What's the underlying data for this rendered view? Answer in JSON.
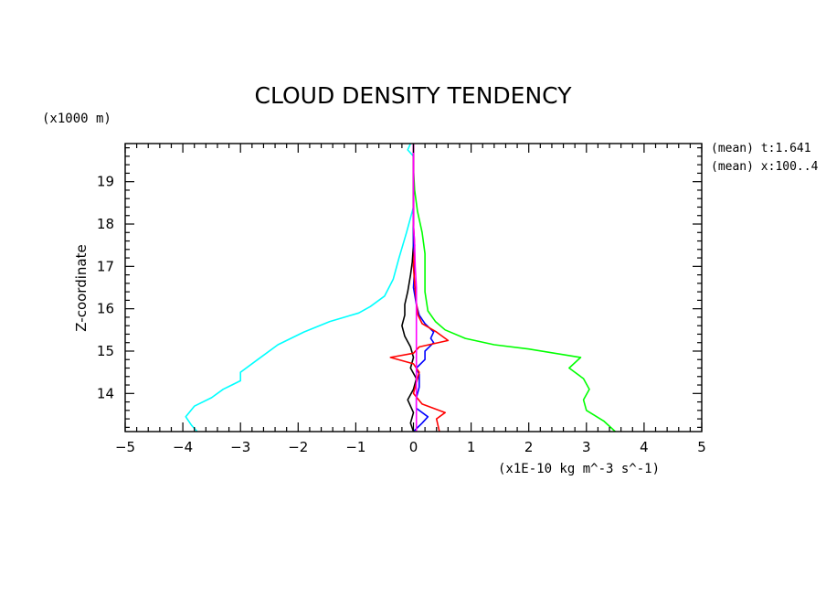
{
  "chart_data": {
    "type": "line",
    "title": "CLOUD DENSITY TENDENCY",
    "xlabel": "(x1E-10 kg m^-3 s^-1)",
    "ylabel": "Z-coordinate",
    "y_unit_label": "(x1000 m)",
    "annotations": [
      "(mean) t:1.641",
      "(mean) x:100..4"
    ],
    "xlim": [
      -5,
      5
    ],
    "ylim": [
      13.1,
      19.9
    ],
    "x_ticks": [
      -5,
      -4,
      -3,
      -2,
      -1,
      0,
      1,
      2,
      3,
      4,
      5
    ],
    "x_tick_labels": [
      "−5",
      "−4",
      "−3",
      "−2",
      "−1",
      "0",
      "1",
      "2",
      "3",
      "4",
      "5"
    ],
    "y_ticks": [
      14,
      15,
      16,
      17,
      18,
      19
    ],
    "y_tick_labels": [
      "14",
      "15",
      "16",
      "17",
      "18",
      "19"
    ],
    "grid": false,
    "legend": "none",
    "series": [
      {
        "color": "#00ffff",
        "points": [
          [
            -3.75,
            13.1
          ],
          [
            -3.85,
            13.25
          ],
          [
            -3.95,
            13.45
          ],
          [
            -3.8,
            13.7
          ],
          [
            -3.5,
            13.9
          ],
          [
            -3.3,
            14.1
          ],
          [
            -3.0,
            14.3
          ],
          [
            -3.0,
            14.5
          ],
          [
            -2.7,
            14.8
          ],
          [
            -2.35,
            15.15
          ],
          [
            -1.9,
            15.45
          ],
          [
            -1.45,
            15.7
          ],
          [
            -0.95,
            15.9
          ],
          [
            -0.75,
            16.05
          ],
          [
            -0.5,
            16.3
          ],
          [
            -0.35,
            16.7
          ],
          [
            -0.25,
            17.2
          ],
          [
            -0.12,
            17.8
          ],
          [
            0.0,
            18.4
          ],
          [
            0.0,
            19.0
          ],
          [
            0.0,
            19.6
          ],
          [
            -0.1,
            19.75
          ],
          [
            -0.05,
            19.9
          ]
        ]
      },
      {
        "color": "#00ff00",
        "points": [
          [
            3.5,
            13.1
          ],
          [
            3.3,
            13.35
          ],
          [
            3.0,
            13.6
          ],
          [
            2.95,
            13.85
          ],
          [
            3.05,
            14.1
          ],
          [
            2.95,
            14.35
          ],
          [
            2.7,
            14.6
          ],
          [
            2.9,
            14.85
          ],
          [
            2.0,
            15.05
          ],
          [
            1.4,
            15.15
          ],
          [
            0.9,
            15.3
          ],
          [
            0.55,
            15.5
          ],
          [
            0.38,
            15.7
          ],
          [
            0.25,
            15.95
          ],
          [
            0.2,
            16.4
          ],
          [
            0.2,
            16.8
          ],
          [
            0.2,
            17.3
          ],
          [
            0.15,
            17.8
          ],
          [
            0.07,
            18.3
          ],
          [
            0.02,
            18.8
          ],
          [
            0.0,
            19.3
          ],
          [
            0.0,
            19.9
          ]
        ]
      },
      {
        "color": "#000000",
        "points": [
          [
            0.0,
            13.1
          ],
          [
            -0.05,
            13.3
          ],
          [
            0.0,
            13.55
          ],
          [
            -0.1,
            13.85
          ],
          [
            0.0,
            14.1
          ],
          [
            0.05,
            14.35
          ],
          [
            -0.05,
            14.6
          ],
          [
            0.0,
            14.85
          ],
          [
            -0.05,
            15.1
          ],
          [
            -0.15,
            15.35
          ],
          [
            -0.2,
            15.6
          ],
          [
            -0.15,
            15.85
          ],
          [
            -0.15,
            16.1
          ],
          [
            -0.1,
            16.4
          ],
          [
            -0.05,
            16.8
          ],
          [
            -0.02,
            17.1
          ],
          [
            0.0,
            17.5
          ],
          [
            0.0,
            18.0
          ],
          [
            0.0,
            18.5
          ],
          [
            0.0,
            19.0
          ],
          [
            0.0,
            19.5
          ],
          [
            0.0,
            19.9
          ]
        ]
      },
      {
        "color": "#0000ff",
        "points": [
          [
            0.0,
            13.1
          ],
          [
            0.15,
            13.3
          ],
          [
            0.25,
            13.45
          ],
          [
            0.05,
            13.65
          ],
          [
            0.05,
            13.9
          ],
          [
            0.1,
            14.15
          ],
          [
            0.1,
            14.45
          ],
          [
            0.05,
            14.6
          ],
          [
            0.2,
            14.8
          ],
          [
            0.2,
            15.0
          ],
          [
            0.35,
            15.2
          ],
          [
            0.3,
            15.3
          ],
          [
            0.35,
            15.45
          ],
          [
            0.2,
            15.65
          ],
          [
            0.1,
            15.85
          ],
          [
            0.05,
            16.1
          ],
          [
            0.0,
            16.5
          ],
          [
            0.02,
            17.0
          ],
          [
            0.0,
            17.5
          ],
          [
            0.0,
            18.0
          ],
          [
            0.0,
            18.5
          ],
          [
            0.0,
            19.0
          ],
          [
            0.0,
            19.9
          ]
        ]
      },
      {
        "color": "#ff0000",
        "points": [
          [
            0.45,
            13.1
          ],
          [
            0.4,
            13.4
          ],
          [
            0.55,
            13.55
          ],
          [
            0.15,
            13.75
          ],
          [
            0.0,
            14.0
          ],
          [
            0.05,
            14.25
          ],
          [
            0.1,
            14.5
          ],
          [
            0.0,
            14.7
          ],
          [
            -0.4,
            14.85
          ],
          [
            0.0,
            14.95
          ],
          [
            0.1,
            15.1
          ],
          [
            0.6,
            15.25
          ],
          [
            0.4,
            15.45
          ],
          [
            0.15,
            15.65
          ],
          [
            0.08,
            15.85
          ],
          [
            0.05,
            16.15
          ],
          [
            0.02,
            16.6
          ],
          [
            0.0,
            17.0
          ],
          [
            0.02,
            17.5
          ],
          [
            0.0,
            18.0
          ],
          [
            0.0,
            18.5
          ],
          [
            0.0,
            19.0
          ],
          [
            0.0,
            19.9
          ]
        ]
      },
      {
        "color": "#ff00ff",
        "points": [
          [
            0.05,
            13.1
          ],
          [
            0.05,
            13.5
          ],
          [
            0.05,
            14.0
          ],
          [
            0.05,
            14.5
          ],
          [
            0.05,
            15.0
          ],
          [
            0.05,
            15.5
          ],
          [
            0.05,
            16.0
          ],
          [
            0.05,
            16.5
          ],
          [
            0.03,
            17.0
          ],
          [
            0.02,
            17.5
          ],
          [
            0.0,
            18.0
          ],
          [
            0.0,
            18.5
          ],
          [
            0.0,
            19.0
          ],
          [
            0.0,
            19.9
          ]
        ]
      }
    ]
  }
}
